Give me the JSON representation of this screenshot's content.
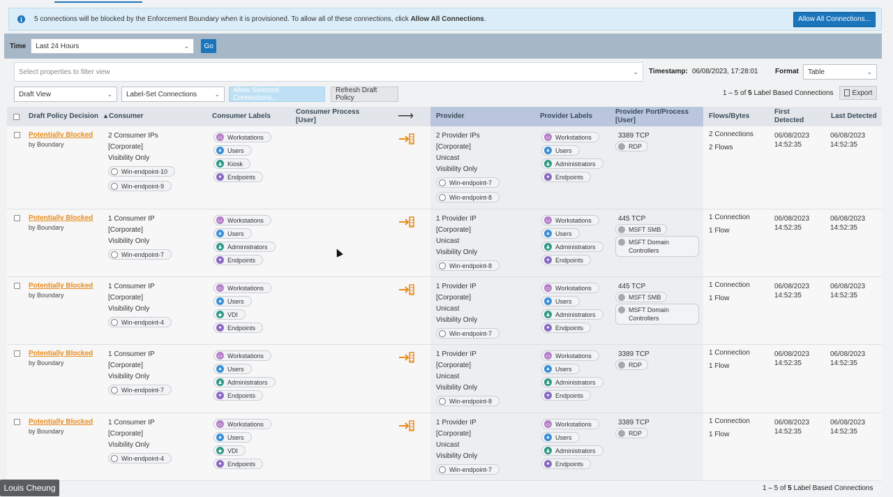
{
  "banner": {
    "text_prefix": "5 connections will be blocked by the Enforcement Boundary when it is provisioned. To allow all of these connections, click ",
    "text_bold": "Allow All Connections",
    "text_suffix": ".",
    "button": "Allow All Connections..."
  },
  "timebar": {
    "label": "Time",
    "value": "Last 24 Hours",
    "go": "Go"
  },
  "filter": {
    "placeholder": "Select properties to filter view"
  },
  "timestamp": {
    "label": "Timestamp:",
    "value": "06/08/2023, 17:28:01"
  },
  "format": {
    "label": "Format",
    "value": "Table"
  },
  "controls": {
    "view": "Draft View",
    "grouping": "Label-Set Connections",
    "allow_selected": "Allow Selected Connections...",
    "refresh": "Refresh Draft Policy",
    "count_prefix": "1 – 5 of ",
    "count_total": "5",
    "count_suffix": " Label Based Connections",
    "export": "Export"
  },
  "columns": {
    "decision": "Draft Policy Decision",
    "consumer": "Consumer",
    "consumer_labels": "Consumer Labels",
    "consumer_process": "Consumer Process [User]",
    "arrow": "⟶",
    "provider": "Provider",
    "provider_labels": "Provider Labels",
    "provider_port": "Provider Port/Process [User]",
    "flows": "Flows/Bytes",
    "first_detected": "First Detected",
    "last_detected": "Last Detected"
  },
  "colors": {
    "workstations": "#b57ec9",
    "users": "#3a8fd8",
    "admins": "#2f9a87",
    "kiosk": "#2f9a87",
    "vdi": "#2f9a87",
    "endpoints": "#8a6bc4",
    "warning": "#e88b1a"
  },
  "rows": [
    {
      "decision": "Potentially Blocked",
      "decision_sub": "by Boundary",
      "consumer": [
        "2 Consumer IPs",
        "[Corporate]",
        "Visibility Only"
      ],
      "consumer_workloads": [
        "Win-endpoint-10",
        "Win-endpoint-9"
      ],
      "consumer_labels": [
        "Workstations",
        "Users",
        "Kiosk",
        "Endpoints"
      ],
      "provider": [
        "2 Provider IPs",
        "[Corporate]",
        "Unicast",
        "Visibility Only"
      ],
      "provider_workloads": [
        "Win-endpoint-7",
        "Win-endpoint-8"
      ],
      "provider_labels": [
        "Workstations",
        "Users",
        "Administrators",
        "Endpoints"
      ],
      "port": "3389 TCP",
      "services": [
        "RDP"
      ],
      "flows": [
        "2 Connections",
        "2 Flows"
      ],
      "first": [
        "06/08/2023",
        "14:52:35"
      ],
      "last": [
        "06/08/2023",
        "14:52:35"
      ]
    },
    {
      "decision": "Potentially Blocked",
      "decision_sub": "by Boundary",
      "consumer": [
        "1 Consumer IP",
        "[Corporate]",
        "Visibility Only"
      ],
      "consumer_workloads": [
        "Win-endpoint-7"
      ],
      "consumer_labels": [
        "Workstations",
        "Users",
        "Administrators",
        "Endpoints"
      ],
      "provider": [
        "1 Provider IP",
        "[Corporate]",
        "Unicast",
        "Visibility Only"
      ],
      "provider_workloads": [
        "Win-endpoint-8"
      ],
      "provider_labels": [
        "Workstations",
        "Users",
        "Administrators",
        "Endpoints"
      ],
      "port": "445 TCP",
      "services": [
        "MSFT SMB",
        "MSFT Domain Controllers"
      ],
      "flows": [
        "1 Connection",
        "1 Flow"
      ],
      "first": [
        "06/08/2023",
        "14:52:35"
      ],
      "last": [
        "06/08/2023",
        "14:52:35"
      ]
    },
    {
      "decision": "Potentially Blocked",
      "decision_sub": "by Boundary",
      "consumer": [
        "1 Consumer IP",
        "[Corporate]",
        "Visibility Only"
      ],
      "consumer_workloads": [
        "Win-endpoint-4"
      ],
      "consumer_labels": [
        "Workstations",
        "Users",
        "VDI",
        "Endpoints"
      ],
      "provider": [
        "1 Provider IP",
        "[Corporate]",
        "Unicast",
        "Visibility Only"
      ],
      "provider_workloads": [
        "Win-endpoint-7"
      ],
      "provider_labels": [
        "Workstations",
        "Users",
        "Administrators",
        "Endpoints"
      ],
      "port": "445 TCP",
      "services": [
        "MSFT SMB",
        "MSFT Domain Controllers"
      ],
      "flows": [
        "1 Connection",
        "1 Flow"
      ],
      "first": [
        "06/08/2023",
        "14:52:35"
      ],
      "last": [
        "06/08/2023",
        "14:52:35"
      ]
    },
    {
      "decision": "Potentially Blocked",
      "decision_sub": "by Boundary",
      "consumer": [
        "1 Consumer IP",
        "[Corporate]",
        "Visibility Only"
      ],
      "consumer_workloads": [
        "Win-endpoint-7"
      ],
      "consumer_labels": [
        "Workstations",
        "Users",
        "Administrators",
        "Endpoints"
      ],
      "provider": [
        "1 Provider IP",
        "[Corporate]",
        "Unicast",
        "Visibility Only"
      ],
      "provider_workloads": [
        "Win-endpoint-8"
      ],
      "provider_labels": [
        "Workstations",
        "Users",
        "Administrators",
        "Endpoints"
      ],
      "port": "3389 TCP",
      "services": [
        "RDP"
      ],
      "flows": [
        "1 Connection",
        "1 Flow"
      ],
      "first": [
        "06/08/2023",
        "14:52:35"
      ],
      "last": [
        "06/08/2023",
        "14:52:35"
      ]
    },
    {
      "decision": "Potentially Blocked",
      "decision_sub": "by Boundary",
      "consumer": [
        "1 Consumer IP",
        "[Corporate]",
        "Visibility Only"
      ],
      "consumer_workloads": [
        "Win-endpoint-4"
      ],
      "consumer_labels": [
        "Workstations",
        "Users",
        "VDI",
        "Endpoints"
      ],
      "provider": [
        "1 Provider IP",
        "[Corporate]",
        "Unicast",
        "Visibility Only"
      ],
      "provider_workloads": [
        "Win-endpoint-7"
      ],
      "provider_labels": [
        "Workstations",
        "Users",
        "Administrators",
        "Endpoints"
      ],
      "port": "3389 TCP",
      "services": [
        "RDP"
      ],
      "flows": [
        "1 Connection",
        "1 Flow"
      ],
      "first": [
        "06/08/2023",
        "14:52:35"
      ],
      "last": [
        "06/08/2023",
        "14:52:35"
      ]
    }
  ],
  "footer": {
    "count_prefix": "1 – 5 of ",
    "count_total": "5",
    "count_suffix": " Label Based Connections",
    "presenter": "Louis Cheung"
  }
}
